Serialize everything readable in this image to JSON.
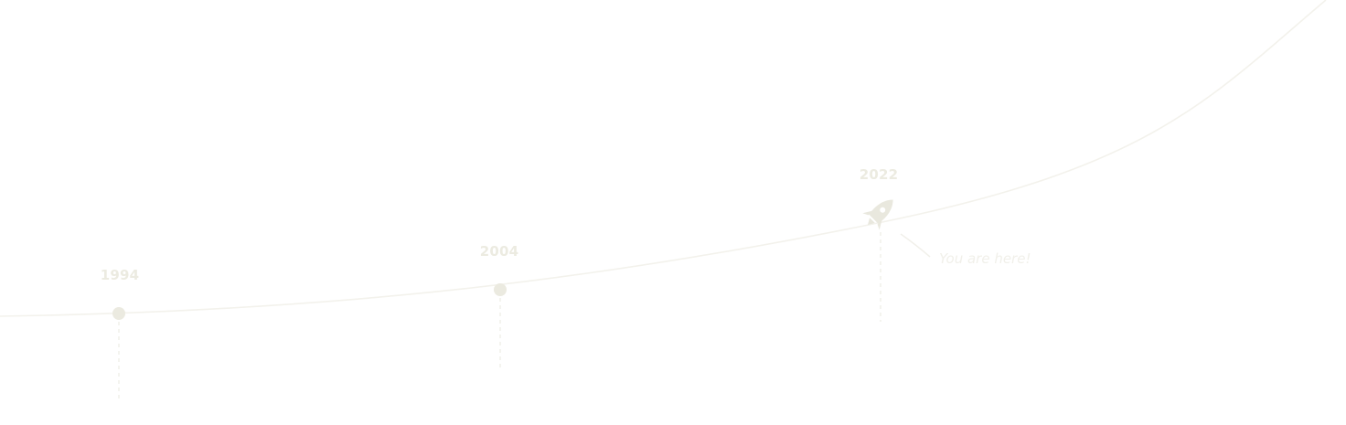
{
  "colors": {
    "curve": "#f3f2ec",
    "milestone": "#ebeae0",
    "label": "#ecebe1",
    "dash": "#f1f0ea",
    "rocket": "#e9e8de",
    "annotation": "#f1f0ea"
  },
  "milestones": [
    {
      "year": "1994",
      "icon": "dot"
    },
    {
      "year": "2004",
      "icon": "dot"
    },
    {
      "year": "2022",
      "icon": "rocket-icon"
    }
  ],
  "annotation": {
    "text": "You are here!"
  }
}
